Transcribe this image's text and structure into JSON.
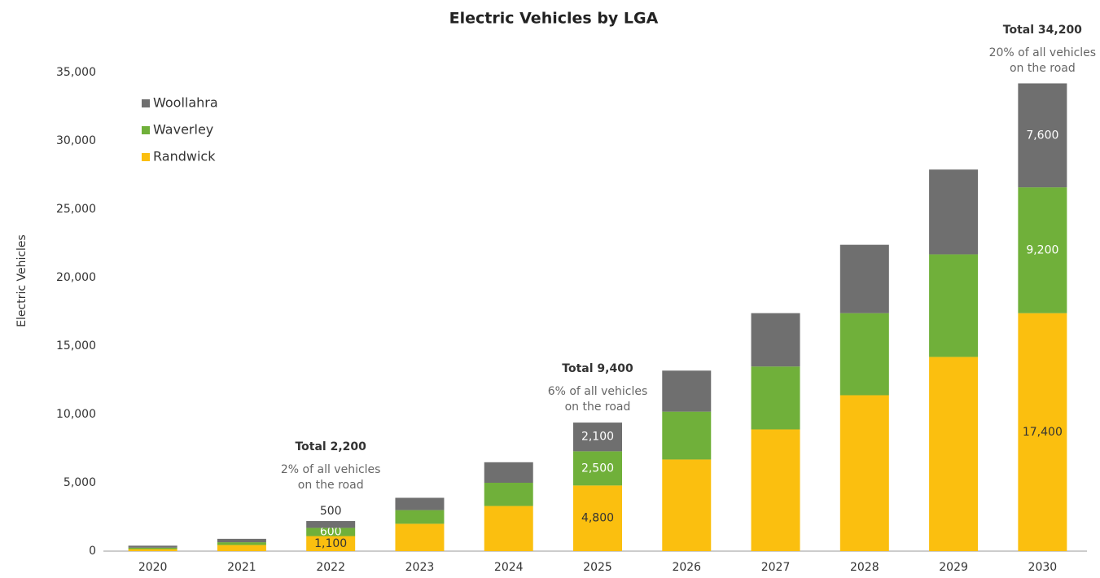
{
  "chart_data": {
    "type": "stacked_bar",
    "title": "Electric Vehicles by LGA",
    "y_label": "Electric Vehicles",
    "categories": [
      "2020",
      "2021",
      "2022",
      "2023",
      "2024",
      "2025",
      "2026",
      "2027",
      "2028",
      "2029",
      "2030"
    ],
    "series": [
      {
        "name": "Randwick",
        "color": "#fbbf0f",
        "values": [
          150,
          450,
          1100,
          2000,
          3300,
          4800,
          6700,
          8900,
          11400,
          14200,
          17400
        ],
        "value_labels": [
          null,
          null,
          "1,100",
          null,
          null,
          "4,800",
          null,
          null,
          null,
          null,
          "17,400"
        ]
      },
      {
        "name": "Waverley",
        "color": "#70b03a",
        "values": [
          100,
          200,
          600,
          1000,
          1700,
          2500,
          3500,
          4600,
          6000,
          7500,
          9200
        ],
        "value_labels": [
          null,
          null,
          "600",
          null,
          null,
          "2,500",
          null,
          null,
          null,
          null,
          "9,200"
        ]
      },
      {
        "name": "Woollahra",
        "color": "#6f6f6f",
        "values": [
          150,
          250,
          500,
          900,
          1500,
          2100,
          3000,
          3900,
          5000,
          6200,
          7600
        ],
        "value_labels": [
          null,
          null,
          "500",
          null,
          null,
          "2,100",
          null,
          null,
          null,
          null,
          "7,600"
        ]
      }
    ],
    "ylim": [
      0,
      35000
    ],
    "yticks": [
      0,
      {
        "value": 5000,
        "label": "5,000"
      },
      {
        "value": 10000,
        "label": "10,000"
      },
      {
        "value": 15000,
        "label": "15,000"
      },
      {
        "value": 20000,
        "label": "20,000"
      },
      {
        "value": 25000,
        "label": "25,000"
      },
      {
        "value": 30000,
        "label": "30,000"
      },
      {
        "value": 35000,
        "label": "35,000"
      }
    ],
    "grid": false,
    "legend": "top-left",
    "annotations": [
      {
        "title": "Total 2,200",
        "lines": [
          "2% of all vehicles",
          "on the road"
        ]
      },
      {
        "title": "Total 9,400",
        "lines": [
          "6% of all vehicles",
          "on the road"
        ]
      },
      {
        "title": "Total 34,200",
        "lines": [
          "20% of all vehicles",
          "on the road"
        ]
      }
    ]
  }
}
